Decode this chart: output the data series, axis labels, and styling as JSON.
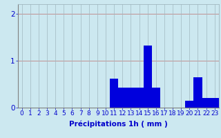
{
  "values": [
    0,
    0,
    0,
    0,
    0,
    0,
    0,
    0,
    0,
    0,
    0,
    0.62,
    0.42,
    0.42,
    0.42,
    1.32,
    0.42,
    0,
    0,
    0,
    0.15,
    0.65,
    0.2,
    0.2
  ],
  "xlabel": "Précipitations 1h ( mm )",
  "bar_color": "#0000dd",
  "background_color": "#cce8f0",
  "grid_color_h": "#c08080",
  "grid_color_v": "#a0b8c0",
  "tick_color": "#0000cc",
  "ylim": [
    0,
    2.2
  ],
  "yticks": [
    0,
    1,
    2
  ],
  "xlim": [
    -0.5,
    23.5
  ],
  "xlabel_fontsize": 7.5,
  "tick_fontsize": 6.5
}
